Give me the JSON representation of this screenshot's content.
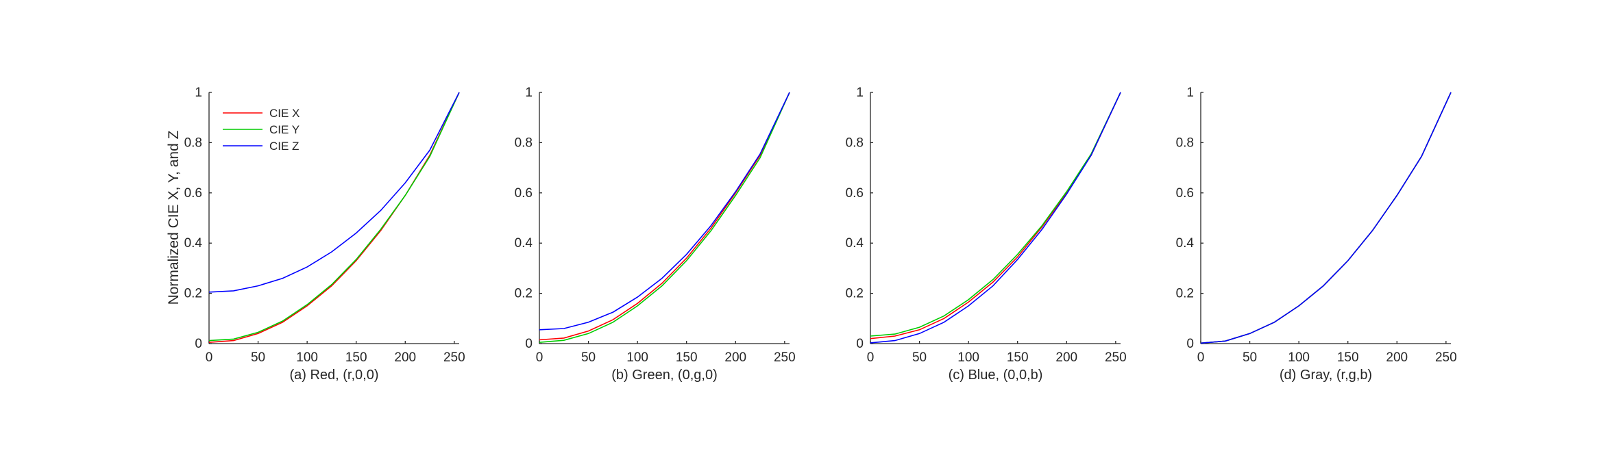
{
  "figure_ylabel": "Normalized CIE X, Y, and Z",
  "chart_data": [
    {
      "type": "line",
      "xlabel": "(a) Red, (r,0,0)",
      "xlim": [
        0,
        255
      ],
      "ylim": [
        0,
        1
      ],
      "xticks": [
        0,
        50,
        100,
        150,
        200,
        250
      ],
      "yticks": [
        0,
        0.2,
        0.4,
        0.6,
        0.8,
        1
      ],
      "legend": {
        "position": "top-left",
        "entries": [
          "CIE X",
          "CIE Y",
          "CIE Z"
        ]
      },
      "series": [
        {
          "name": "CIE X",
          "color": "#ff0000",
          "x": [
            0,
            25,
            50,
            75,
            100,
            125,
            150,
            175,
            200,
            225,
            255
          ],
          "y": [
            0.005,
            0.012,
            0.04,
            0.085,
            0.15,
            0.23,
            0.33,
            0.45,
            0.59,
            0.75,
            1.0
          ]
        },
        {
          "name": "CIE Y",
          "color": "#00cc00",
          "x": [
            0,
            25,
            50,
            75,
            100,
            125,
            150,
            175,
            200,
            225,
            255
          ],
          "y": [
            0.012,
            0.018,
            0.045,
            0.09,
            0.155,
            0.235,
            0.335,
            0.455,
            0.59,
            0.745,
            1.0
          ]
        },
        {
          "name": "CIE Z",
          "color": "#0000ff",
          "x": [
            0,
            25,
            50,
            75,
            100,
            125,
            150,
            175,
            200,
            225,
            255
          ],
          "y": [
            0.205,
            0.21,
            0.23,
            0.26,
            0.305,
            0.365,
            0.44,
            0.53,
            0.64,
            0.77,
            1.0
          ]
        }
      ]
    },
    {
      "type": "line",
      "xlabel": "(b) Green, (0,g,0)",
      "xlim": [
        0,
        255
      ],
      "ylim": [
        0,
        1
      ],
      "xticks": [
        0,
        50,
        100,
        150,
        200,
        250
      ],
      "yticks": [
        0,
        0.2,
        0.4,
        0.6,
        0.8,
        1
      ],
      "series": [
        {
          "name": "CIE X",
          "color": "#ff0000",
          "x": [
            0,
            25,
            50,
            75,
            100,
            125,
            150,
            175,
            200,
            225,
            255
          ],
          "y": [
            0.015,
            0.022,
            0.05,
            0.095,
            0.16,
            0.24,
            0.34,
            0.46,
            0.6,
            0.75,
            1.0
          ]
        },
        {
          "name": "CIE Y",
          "color": "#00cc00",
          "x": [
            0,
            25,
            50,
            75,
            100,
            125,
            150,
            175,
            200,
            225,
            255
          ],
          "y": [
            0.005,
            0.013,
            0.04,
            0.085,
            0.15,
            0.23,
            0.33,
            0.45,
            0.59,
            0.74,
            1.0
          ]
        },
        {
          "name": "CIE Z",
          "color": "#0000ff",
          "x": [
            0,
            25,
            50,
            75,
            100,
            125,
            150,
            175,
            200,
            225,
            255
          ],
          "y": [
            0.055,
            0.06,
            0.085,
            0.125,
            0.185,
            0.26,
            0.355,
            0.47,
            0.605,
            0.755,
            1.0
          ]
        }
      ]
    },
    {
      "type": "line",
      "xlabel": "(c) Blue, (0,0,b)",
      "xlim": [
        0,
        255
      ],
      "ylim": [
        0,
        1
      ],
      "xticks": [
        0,
        50,
        100,
        150,
        200,
        250
      ],
      "yticks": [
        0,
        0.2,
        0.4,
        0.6,
        0.8,
        1
      ],
      "series": [
        {
          "name": "CIE X",
          "color": "#ff0000",
          "x": [
            0,
            25,
            50,
            75,
            100,
            125,
            150,
            175,
            200,
            225,
            255
          ],
          "y": [
            0.02,
            0.03,
            0.055,
            0.1,
            0.165,
            0.245,
            0.345,
            0.465,
            0.6,
            0.75,
            1.0
          ]
        },
        {
          "name": "CIE Y",
          "color": "#00cc00",
          "x": [
            0,
            25,
            50,
            75,
            100,
            125,
            150,
            175,
            200,
            225,
            255
          ],
          "y": [
            0.03,
            0.038,
            0.065,
            0.11,
            0.175,
            0.255,
            0.355,
            0.47,
            0.605,
            0.755,
            1.0
          ]
        },
        {
          "name": "CIE Z",
          "color": "#0000ff",
          "x": [
            0,
            25,
            50,
            75,
            100,
            125,
            150,
            175,
            200,
            225,
            255
          ],
          "y": [
            0.003,
            0.012,
            0.04,
            0.085,
            0.15,
            0.23,
            0.335,
            0.455,
            0.595,
            0.75,
            1.0
          ]
        }
      ]
    },
    {
      "type": "line",
      "xlabel": "(d) Gray, (r,g,b)",
      "xlim": [
        0,
        255
      ],
      "ylim": [
        0,
        1
      ],
      "xticks": [
        0,
        50,
        100,
        150,
        200,
        250
      ],
      "yticks": [
        0,
        0.2,
        0.4,
        0.6,
        0.8,
        1
      ],
      "series": [
        {
          "name": "CIE X",
          "color": "#ff0000",
          "x": [
            0,
            25,
            50,
            75,
            100,
            125,
            150,
            175,
            200,
            225,
            255
          ],
          "y": [
            0.002,
            0.01,
            0.04,
            0.085,
            0.15,
            0.23,
            0.33,
            0.45,
            0.59,
            0.745,
            1.0
          ]
        },
        {
          "name": "CIE Y",
          "color": "#00cc00",
          "x": [
            0,
            25,
            50,
            75,
            100,
            125,
            150,
            175,
            200,
            225,
            255
          ],
          "y": [
            0.002,
            0.01,
            0.04,
            0.085,
            0.15,
            0.23,
            0.33,
            0.45,
            0.59,
            0.745,
            1.0
          ]
        },
        {
          "name": "CIE Z",
          "color": "#0000ff",
          "x": [
            0,
            25,
            50,
            75,
            100,
            125,
            150,
            175,
            200,
            225,
            255
          ],
          "y": [
            0.002,
            0.01,
            0.04,
            0.085,
            0.15,
            0.23,
            0.33,
            0.45,
            0.59,
            0.745,
            1.0
          ]
        }
      ]
    }
  ]
}
